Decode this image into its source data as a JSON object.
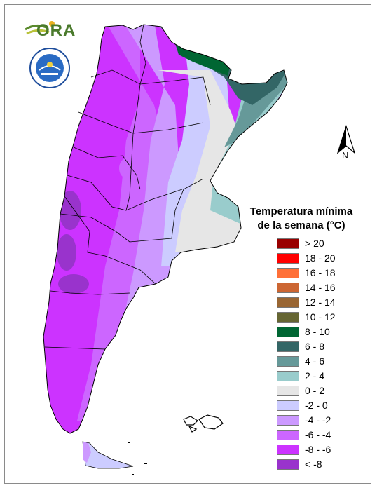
{
  "logos": {
    "ora_text": "ORA",
    "seal_icon": "smn-seal-icon"
  },
  "compass": {
    "label": "N",
    "icon": "north-arrow-icon"
  },
  "legend": {
    "title_line1": "Temperatura mínima",
    "title_line2": "de la semana (°C)",
    "items": [
      {
        "label": "> 20",
        "color": "#990000"
      },
      {
        "label": "18 - 20",
        "color": "#ff0000"
      },
      {
        "label": "16 - 18",
        "color": "#ff7038"
      },
      {
        "label": "14 - 16",
        "color": "#cc6633"
      },
      {
        "label": "12 - 14",
        "color": "#996633"
      },
      {
        "label": "10 - 12",
        "color": "#666633"
      },
      {
        "label": "8 - 10",
        "color": "#006633"
      },
      {
        "label": "6 - 8",
        "color": "#336666"
      },
      {
        "label": "4 - 6",
        "color": "#669999"
      },
      {
        "label": "2 - 4",
        "color": "#99cccc"
      },
      {
        "label": "0 - 2",
        "color": "#e6e6e6"
      },
      {
        "label": "-2 - 0",
        "color": "#ccccff"
      },
      {
        "label": "-4 - -2",
        "color": "#cc99ff"
      },
      {
        "label": "-6 - -4",
        "color": "#cc66ff"
      },
      {
        "label": "-8 - -6",
        "color": "#cc33ff"
      },
      {
        "label": "< -8",
        "color": "#9933cc"
      }
    ]
  }
}
